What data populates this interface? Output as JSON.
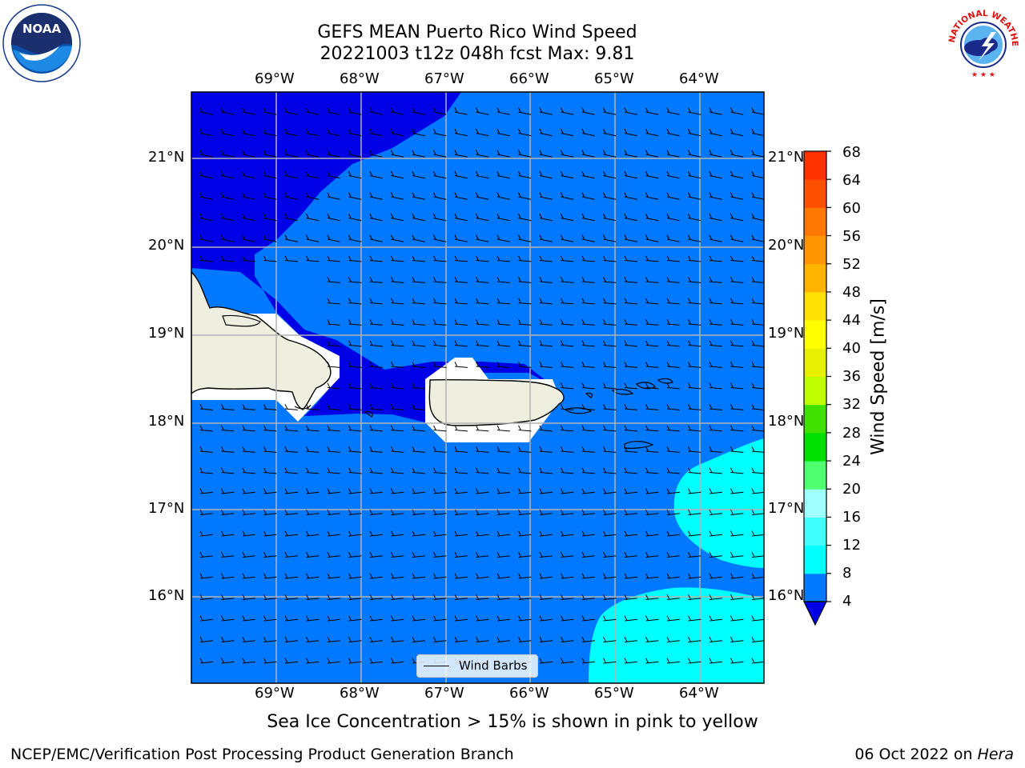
{
  "header": {
    "title_line1": "GEFS MEAN Puerto Rico Wind Speed",
    "title_line2": "20221003 t12z 048h fcst   Max: 9.81"
  },
  "logos": {
    "left": {
      "name": "noaa-logo",
      "text": "NOAA"
    },
    "right": {
      "name": "nws-logo",
      "text": "NATIONAL WEATHER SERVICE"
    }
  },
  "map": {
    "lon_labels": [
      "69°W",
      "68°W",
      "67°W",
      "66°W",
      "65°W",
      "64°W"
    ],
    "lat_labels": [
      "21°N",
      "20°N",
      "19°N",
      "18°N",
      "17°N",
      "16°N"
    ],
    "legend_label": "Wind Barbs",
    "colors": {
      "land": "#efefdf",
      "speed_0_4": "#0000e6",
      "speed_4_8": "#0078ff",
      "speed_8_12": "#00ffff",
      "grid": "#b4b4b4"
    }
  },
  "colorbar": {
    "label": "Wind Speed [m/s]",
    "ticks": [
      "4",
      "8",
      "12",
      "16",
      "20",
      "24",
      "28",
      "32",
      "36",
      "40",
      "44",
      "48",
      "52",
      "56",
      "60",
      "64",
      "68"
    ],
    "colors": [
      "#0078ff",
      "#00ffff",
      "#40ffff",
      "#a0ffff",
      "#50ff70",
      "#00e000",
      "#40e000",
      "#c0ff00",
      "#e6f000",
      "#ffff00",
      "#ffe000",
      "#ffb400",
      "#ff9600",
      "#ff7800",
      "#ff5000",
      "#ff3200",
      "#ff0000"
    ],
    "extend_color": "#0000e6"
  },
  "caption": "Sea Ice Concentration > 15% is shown in pink to yellow",
  "footer": {
    "left": "NCEP/EMC/Verification Post Processing Product Generation Branch",
    "date": "06 Oct 2022 on ",
    "machine": "Hera"
  }
}
